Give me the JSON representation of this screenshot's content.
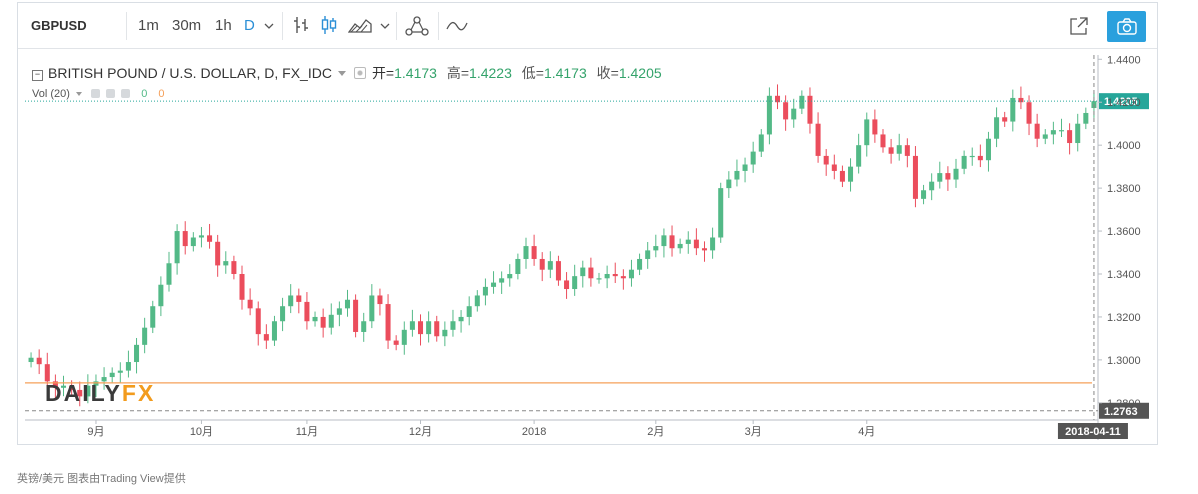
{
  "toolbar": {
    "symbol": "GBPUSD",
    "intervals": [
      "1m",
      "30m",
      "1h",
      "D"
    ],
    "active_interval": "D",
    "icons": [
      "chevron-down-icon",
      "bar-style-icon",
      "candle-style-icon",
      "mountain-style-icon",
      "chevron-down-icon",
      "compare-icon",
      "indicator-icon",
      "share-icon",
      "camera-icon"
    ]
  },
  "legend": {
    "title": "BRITISH POUND / U.S. DOLLAR, D, FX_IDC",
    "open_label": "开=",
    "open": "1.4173",
    "high_label": "高=",
    "high": "1.4223",
    "low_label": "低=",
    "low": "1.4173",
    "close_label": "收=",
    "close": "1.4205",
    "vol_label": "Vol (20)",
    "vol_value1": "0",
    "vol_value2": "0"
  },
  "watermark": {
    "part1": "DAILY",
    "part2": "FX"
  },
  "caption": "英镑/美元 图表由Trading View提供",
  "colors": {
    "up": "#53b987",
    "down": "#eb4d5c",
    "last_price_line": "#26a69a",
    "ma_line": "#f5a05a",
    "accent": "#2b8fd6"
  },
  "chart_data": {
    "type": "candlestick",
    "title": "BRITISH POUND / U.S. DOLLAR, D, FX_IDC",
    "ylim": [
      1.272,
      1.442
    ],
    "y_ticks": [
      "1.4400",
      "1.4200",
      "1.4000",
      "1.3800",
      "1.3600",
      "1.3400",
      "1.3200",
      "1.3000",
      "1.2800"
    ],
    "x_ticks": [
      "9月",
      "10月",
      "11月",
      "12月",
      "2018",
      "2月",
      "3月",
      "4月"
    ],
    "last_date": "2018-04-11",
    "last_price": "1.4205",
    "crosshair_price": "1.2763",
    "ma_level": 1.2893,
    "closes": [
      1.301,
      1.298,
      1.29,
      1.287,
      1.288,
      1.286,
      1.283,
      1.288,
      1.29,
      1.292,
      1.294,
      1.295,
      1.299,
      1.307,
      1.315,
      1.325,
      1.335,
      1.345,
      1.36,
      1.353,
      1.357,
      1.358,
      1.355,
      1.344,
      1.346,
      1.34,
      1.328,
      1.324,
      1.312,
      1.309,
      1.318,
      1.325,
      1.33,
      1.327,
      1.318,
      1.32,
      1.315,
      1.321,
      1.324,
      1.328,
      1.313,
      1.318,
      1.33,
      1.326,
      1.309,
      1.307,
      1.314,
      1.318,
      1.312,
      1.318,
      1.311,
      1.314,
      1.318,
      1.32,
      1.325,
      1.33,
      1.334,
      1.336,
      1.338,
      1.34,
      1.347,
      1.353,
      1.347,
      1.342,
      1.346,
      1.337,
      1.333,
      1.339,
      1.343,
      1.338,
      1.338,
      1.34,
      1.339,
      1.338,
      1.342,
      1.347,
      1.351,
      1.353,
      1.358,
      1.352,
      1.354,
      1.356,
      1.352,
      1.351,
      1.357,
      1.38,
      1.384,
      1.388,
      1.391,
      1.397,
      1.405,
      1.423,
      1.42,
      1.412,
      1.417,
      1.423,
      1.41,
      1.395,
      1.391,
      1.388,
      1.383,
      1.39,
      1.4,
      1.412,
      1.405,
      1.399,
      1.396,
      1.4,
      1.395,
      1.375,
      1.379,
      1.383,
      1.387,
      1.384,
      1.389,
      1.395,
      1.395,
      1.393,
      1.403,
      1.413,
      1.411,
      1.422,
      1.42,
      1.41,
      1.403,
      1.405,
      1.407,
      1.407,
      1.401,
      1.41,
      1.415,
      1.4205
    ],
    "opens": [
      1.299,
      1.301,
      1.298,
      1.29,
      1.287,
      1.288,
      1.286,
      1.283,
      1.288,
      1.29,
      1.292,
      1.294,
      1.295,
      1.299,
      1.307,
      1.315,
      1.325,
      1.335,
      1.345,
      1.36,
      1.353,
      1.357,
      1.358,
      1.355,
      1.344,
      1.346,
      1.34,
      1.328,
      1.324,
      1.312,
      1.309,
      1.318,
      1.325,
      1.33,
      1.327,
      1.318,
      1.32,
      1.315,
      1.321,
      1.324,
      1.328,
      1.313,
      1.318,
      1.33,
      1.326,
      1.309,
      1.307,
      1.314,
      1.318,
      1.312,
      1.318,
      1.311,
      1.314,
      1.318,
      1.32,
      1.325,
      1.33,
      1.334,
      1.336,
      1.338,
      1.34,
      1.347,
      1.353,
      1.347,
      1.342,
      1.346,
      1.337,
      1.333,
      1.339,
      1.343,
      1.338,
      1.338,
      1.34,
      1.339,
      1.338,
      1.342,
      1.347,
      1.351,
      1.353,
      1.358,
      1.352,
      1.354,
      1.356,
      1.352,
      1.351,
      1.357,
      1.38,
      1.384,
      1.388,
      1.391,
      1.397,
      1.405,
      1.423,
      1.42,
      1.412,
      1.417,
      1.423,
      1.41,
      1.395,
      1.391,
      1.388,
      1.383,
      1.39,
      1.4,
      1.412,
      1.405,
      1.399,
      1.396,
      1.4,
      1.395,
      1.375,
      1.379,
      1.383,
      1.387,
      1.384,
      1.389,
      1.395,
      1.395,
      1.393,
      1.403,
      1.413,
      1.411,
      1.422,
      1.42,
      1.41,
      1.403,
      1.405,
      1.407,
      1.407,
      1.401,
      1.41,
      1.4173
    ]
  }
}
